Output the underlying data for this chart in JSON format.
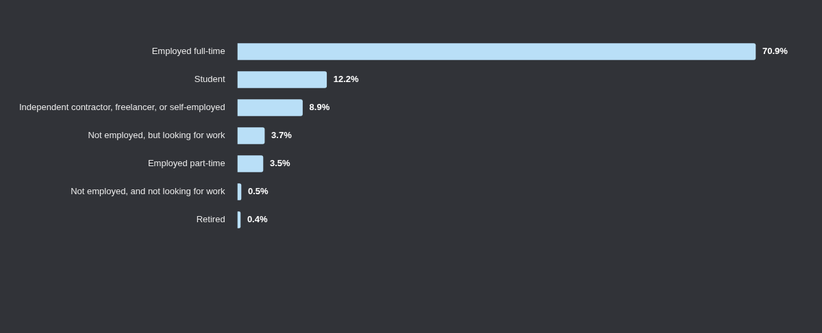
{
  "chart_data": {
    "type": "bar",
    "orientation": "horizontal",
    "categories": [
      "Employed full-time",
      "Student",
      "Independent contractor, freelancer, or self-employed",
      "Not employed, but looking for work",
      "Employed part-time",
      "Not employed, and not looking for work",
      "Retired"
    ],
    "values": [
      70.9,
      12.2,
      8.9,
      3.7,
      3.5,
      0.5,
      0.4
    ],
    "value_labels": [
      "70.9%",
      "12.2%",
      "8.9%",
      "3.7%",
      "3.5%",
      "0.5%",
      "0.4%"
    ],
    "color": "#b9dff7",
    "tick_labels": "y",
    "grid": false,
    "legend": false
  }
}
